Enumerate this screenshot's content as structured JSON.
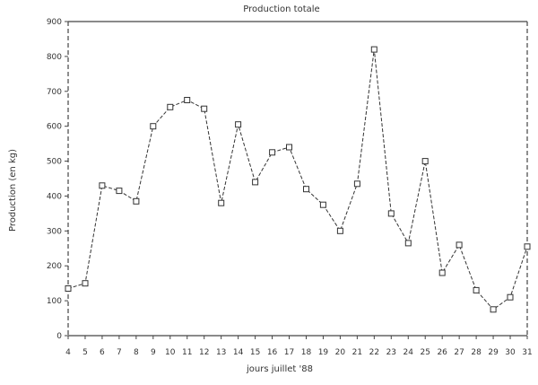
{
  "chart_data": {
    "type": "line",
    "title": "Production totale",
    "xlabel": "jours juillet '88",
    "ylabel": "Production (en kg)",
    "x": [
      4,
      5,
      6,
      7,
      8,
      9,
      10,
      11,
      12,
      13,
      14,
      15,
      16,
      17,
      18,
      19,
      20,
      21,
      22,
      23,
      24,
      25,
      26,
      27,
      28,
      29,
      30,
      31
    ],
    "y": [
      135,
      150,
      430,
      415,
      385,
      600,
      655,
      675,
      650,
      380,
      605,
      440,
      525,
      540,
      420,
      375,
      300,
      435,
      820,
      350,
      265,
      500,
      180,
      260,
      130,
      75,
      110,
      255
    ],
    "xlim": [
      4,
      31
    ],
    "ylim": [
      0,
      900
    ],
    "yticks": [
      "0",
      "100",
      "200",
      "300",
      "400",
      "500",
      "600",
      "700",
      "800",
      "900"
    ],
    "grid": false,
    "marker": "square",
    "line_style": "dashed",
    "line_color": "#333333"
  }
}
